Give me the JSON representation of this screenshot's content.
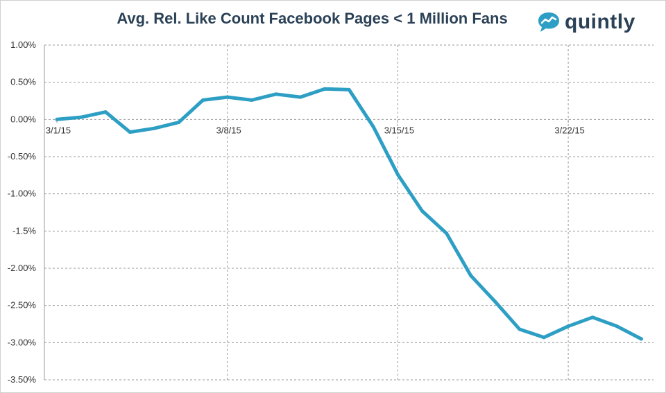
{
  "chart_data": {
    "type": "line",
    "title": "Avg. Rel. Like Count Facebook Pages < 1 Million Fans",
    "xlabel": "",
    "ylabel": "",
    "ylim": [
      -3.5,
      1.0
    ],
    "y_ticks": [
      1.0,
      0.5,
      0.0,
      -0.5,
      -1.0,
      -1.5,
      -2.0,
      -2.5,
      -3.0,
      -3.5
    ],
    "y_tick_labels": [
      "1.00%",
      "0.50%",
      "0.00%",
      "-0.50%",
      "-1.00%",
      "-1.5%",
      "-2.00%",
      "-2.50%",
      "-3.00%",
      "-3.50%"
    ],
    "x_tick_labels": [
      "3/1/15",
      "3/8/15",
      "3/15/15",
      "3/22/15"
    ],
    "x_tick_indices": [
      0,
      7,
      14,
      21
    ],
    "x_count": 25,
    "grid": true,
    "series": [
      {
        "name": "Avg. Rel. Like Count",
        "color": "#2e9fc4",
        "values": [
          0.0,
          0.03,
          0.1,
          -0.17,
          -0.12,
          -0.04,
          0.26,
          0.3,
          0.26,
          0.34,
          0.3,
          0.41,
          0.4,
          -0.1,
          -0.74,
          -1.23,
          -1.53,
          -2.1,
          -2.45,
          -2.82,
          -2.93,
          -2.78,
          -2.66,
          -2.78,
          -2.95
        ]
      }
    ]
  },
  "brand": {
    "name": "quintly",
    "color": "#2b4156",
    "accent": "#2e9fc4",
    "icon": "quintly-logo-icon"
  }
}
